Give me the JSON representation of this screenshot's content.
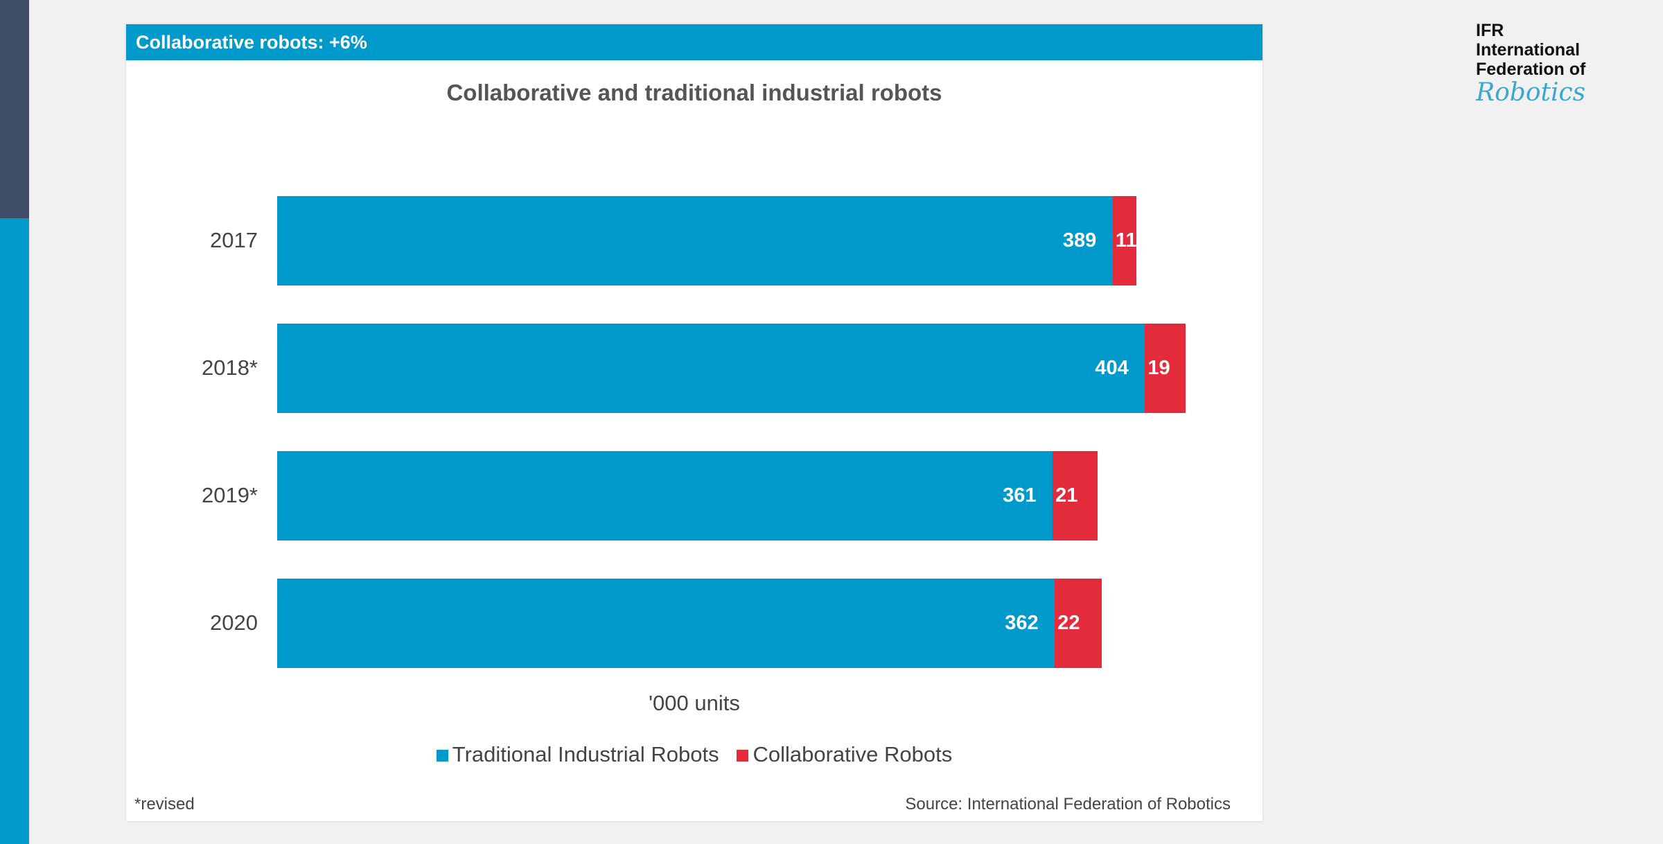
{
  "header": "Collaborative robots: +6%",
  "logo": {
    "line1": "IFR",
    "line2": "International",
    "line3": "Federation of",
    "line4": "Robotics"
  },
  "chart_data": {
    "type": "bar",
    "orientation": "horizontal",
    "stacked": true,
    "title": "Collaborative and traditional industrial robots",
    "xlabel": "'000 units",
    "categories": [
      "2017",
      "2018*",
      "2019*",
      "2020"
    ],
    "series": [
      {
        "name": "Traditional Industrial Robots",
        "color": "#0099cc",
        "values": [
          389,
          404,
          361,
          362
        ]
      },
      {
        "name": "Collaborative Robots",
        "color": "#e32b3b",
        "values": [
          11,
          19,
          21,
          22
        ]
      }
    ],
    "legend": "bottom"
  },
  "footnote": "*revised",
  "source": "Source: International Federation of Robotics"
}
